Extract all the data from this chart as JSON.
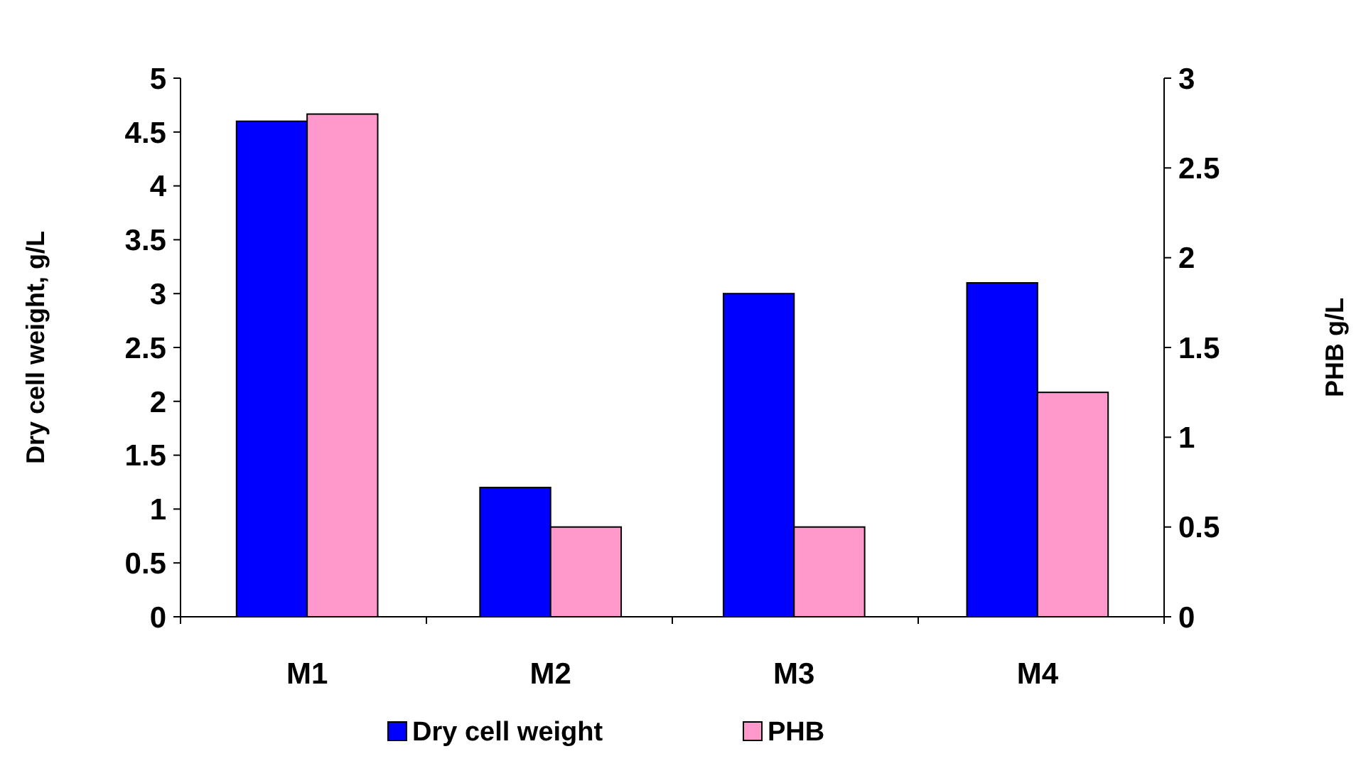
{
  "chart_data": {
    "type": "bar",
    "ylabel": "Dry cell weight, g/L",
    "y2label": "PHB g/L",
    "categories": [
      "M1",
      "M2",
      "M3",
      "M4"
    ],
    "series": [
      {
        "name": "Dry cell weight",
        "color": "#0000ff",
        "values": [
          4.6,
          1.2,
          3.0,
          3.1
        ]
      },
      {
        "name": "PHB",
        "color": "#ff99cc",
        "values": [
          2.8,
          0.5,
          0.5,
          1.25
        ],
        "axis": "y2"
      }
    ],
    "ylim": [
      0,
      5
    ],
    "yticks": [
      0,
      {
        "value": 0.5,
        "label": "0.5"
      },
      1,
      {
        "value": 1.5,
        "label": "1.5"
      },
      2,
      {
        "value": 2.5,
        "label": "2.5"
      },
      3,
      {
        "value": 3.5,
        "label": "3.5"
      },
      4,
      {
        "value": 4.5,
        "label": "4.5"
      },
      5
    ],
    "y2lim": [
      0,
      3
    ],
    "y2ticks": [
      0,
      {
        "value": 0.5,
        "label": "0.5"
      },
      1,
      {
        "value": 1.5,
        "label": "1.5"
      },
      2,
      {
        "value": 2.5,
        "label": "2.5"
      },
      3
    ],
    "grid": false,
    "legend": "bottom"
  }
}
